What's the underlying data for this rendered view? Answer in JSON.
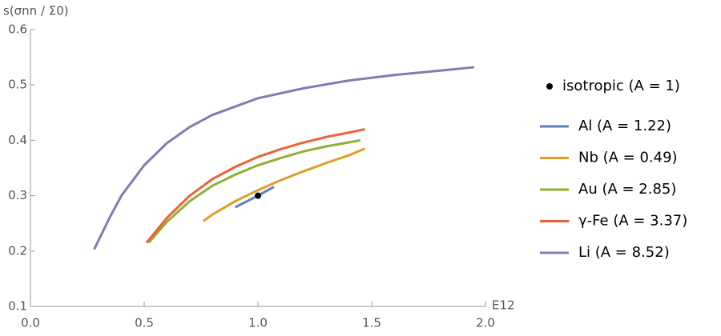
{
  "chart_data": {
    "type": "line",
    "x_label": "E12",
    "y_label": "s(σnn / Σ0)",
    "xlim": [
      0,
      2.0
    ],
    "xticks": [
      {
        "value": 0,
        "label": "0.0"
      },
      0.5,
      {
        "value": 1,
        "label": "1.0"
      },
      1.5,
      {
        "value": 2,
        "label": "2.0"
      }
    ],
    "ylim": [
      0.1,
      0.6
    ],
    "yticks": [
      0.1,
      0.2,
      0.3,
      0.4,
      0.5,
      0.6
    ],
    "points": {
      "name": "isotropic (A = 1)",
      "color": "#000000",
      "x": [
        1.0
      ],
      "values": [
        0.3
      ]
    },
    "series": [
      {
        "name": "Al (A = 1.22)",
        "color": "#5e81b5",
        "x": [
          0.9,
          1.0,
          1.07
        ],
        "values": [
          0.279,
          0.3,
          0.316
        ]
      },
      {
        "name": "Nb (A = 0.49)",
        "color": "#e19c24",
        "x": [
          0.76,
          0.8,
          0.9,
          1.0,
          1.1,
          1.2,
          1.3,
          1.4,
          1.47
        ],
        "values": [
          0.254,
          0.266,
          0.29,
          0.31,
          0.328,
          0.344,
          0.359,
          0.373,
          0.385
        ]
      },
      {
        "name": "Au (A = 2.85)",
        "color": "#8fb032",
        "x": [
          0.52,
          0.6,
          0.7,
          0.8,
          0.9,
          1.0,
          1.1,
          1.2,
          1.3,
          1.45
        ],
        "values": [
          0.215,
          0.253,
          0.29,
          0.318,
          0.338,
          0.355,
          0.368,
          0.38,
          0.389,
          0.4
        ]
      },
      {
        "name": "γ-Fe (A = 3.37)",
        "color": "#eb6235",
        "x": [
          0.51,
          0.6,
          0.7,
          0.8,
          0.9,
          1.0,
          1.1,
          1.2,
          1.3,
          1.4,
          1.47
        ],
        "values": [
          0.215,
          0.26,
          0.3,
          0.33,
          0.352,
          0.37,
          0.384,
          0.396,
          0.406,
          0.414,
          0.42
        ]
      },
      {
        "name": "Li (A = 8.52)",
        "color": "#8778b3",
        "x": [
          0.28,
          0.35,
          0.4,
          0.5,
          0.6,
          0.7,
          0.8,
          1.0,
          1.2,
          1.4,
          1.6,
          1.8,
          1.95
        ],
        "values": [
          0.203,
          0.262,
          0.3,
          0.355,
          0.395,
          0.424,
          0.446,
          0.476,
          0.494,
          0.508,
          0.518,
          0.526,
          0.532
        ]
      }
    ]
  }
}
